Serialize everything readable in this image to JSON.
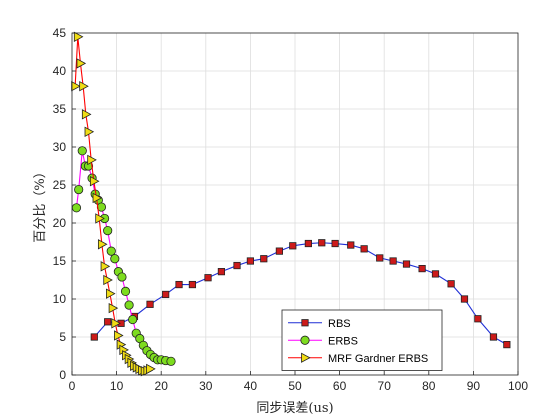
{
  "chart_data": {
    "type": "line",
    "title": "",
    "xlabel": "同步误差(us)",
    "ylabel": "百分比（%）",
    "xlim": [
      0,
      100
    ],
    "ylim": [
      0,
      45
    ],
    "xticks": [
      0,
      10,
      20,
      30,
      40,
      50,
      60,
      70,
      80,
      90,
      100
    ],
    "yticks": [
      0,
      5,
      10,
      15,
      20,
      25,
      30,
      35,
      40,
      45
    ],
    "grid": true,
    "legend_position": "bottom-right",
    "series": [
      {
        "name": "RBS",
        "line_color": "#1f2fd6",
        "marker": "square",
        "marker_fill": "#cc1a1a",
        "x": [
          5,
          8,
          11,
          14,
          17.5,
          21,
          24,
          27,
          30.5,
          33.5,
          37,
          40,
          43,
          46.5,
          49.5,
          53,
          56,
          59,
          62.5,
          65.5,
          69,
          72,
          75,
          78.5,
          81.5,
          85,
          88,
          91,
          94.5,
          97.5
        ],
        "y": [
          5,
          7,
          6.8,
          7.7,
          9.3,
          10.6,
          11.9,
          11.9,
          12.8,
          13.6,
          14.4,
          15,
          15.3,
          16.3,
          17,
          17.3,
          17.4,
          17.3,
          17.1,
          16.6,
          15.4,
          15,
          14.6,
          14,
          13.3,
          12,
          10,
          7.4,
          5,
          4
        ]
      },
      {
        "name": "ERBS",
        "line_color": "#ff00ff",
        "marker": "circle",
        "marker_fill": "#7ddc1f",
        "x": [
          1,
          1.5,
          2.3,
          3,
          3.7,
          4.5,
          5.2,
          5.9,
          6.6,
          7.3,
          8,
          8.8,
          9.6,
          10.4,
          11.2,
          12,
          12.8,
          13.6,
          14.4,
          15.2,
          16,
          16.8,
          17.6,
          18.4,
          19.2,
          20,
          21,
          22.2
        ],
        "y": [
          22,
          24.4,
          29.5,
          27.5,
          27.5,
          25.9,
          23.8,
          23,
          22.1,
          20.6,
          19,
          16.3,
          15.3,
          13.6,
          12.9,
          11,
          9.2,
          7.3,
          5.5,
          4.8,
          3.9,
          3.2,
          2.7,
          2.3,
          2,
          2,
          1.9,
          1.8
        ]
      },
      {
        "name": "MRF Gardner ERBS",
        "line_color": "#ff0000",
        "marker": "triangle-right",
        "marker_fill": "#f0dc14",
        "x": [
          0.7,
          1.3,
          1.9,
          2.5,
          3.1,
          3.7,
          4.3,
          4.9,
          5.5,
          6.1,
          6.7,
          7.3,
          7.9,
          8.5,
          9.1,
          9.7,
          10.3,
          10.9,
          11.5,
          12.1,
          12.7,
          13.3,
          13.9,
          14.5,
          15.1,
          15.7,
          16.3,
          16.9,
          17.5
        ],
        "y": [
          38,
          44.5,
          41,
          38,
          34.3,
          32,
          28.3,
          25.5,
          23.3,
          20.6,
          17.2,
          14.3,
          12.5,
          10.7,
          8.8,
          6.8,
          5.2,
          4,
          3.3,
          2.6,
          2.1,
          1.6,
          1.2,
          1,
          0.8,
          0.6,
          0.5,
          0.6,
          0.8
        ]
      }
    ]
  }
}
